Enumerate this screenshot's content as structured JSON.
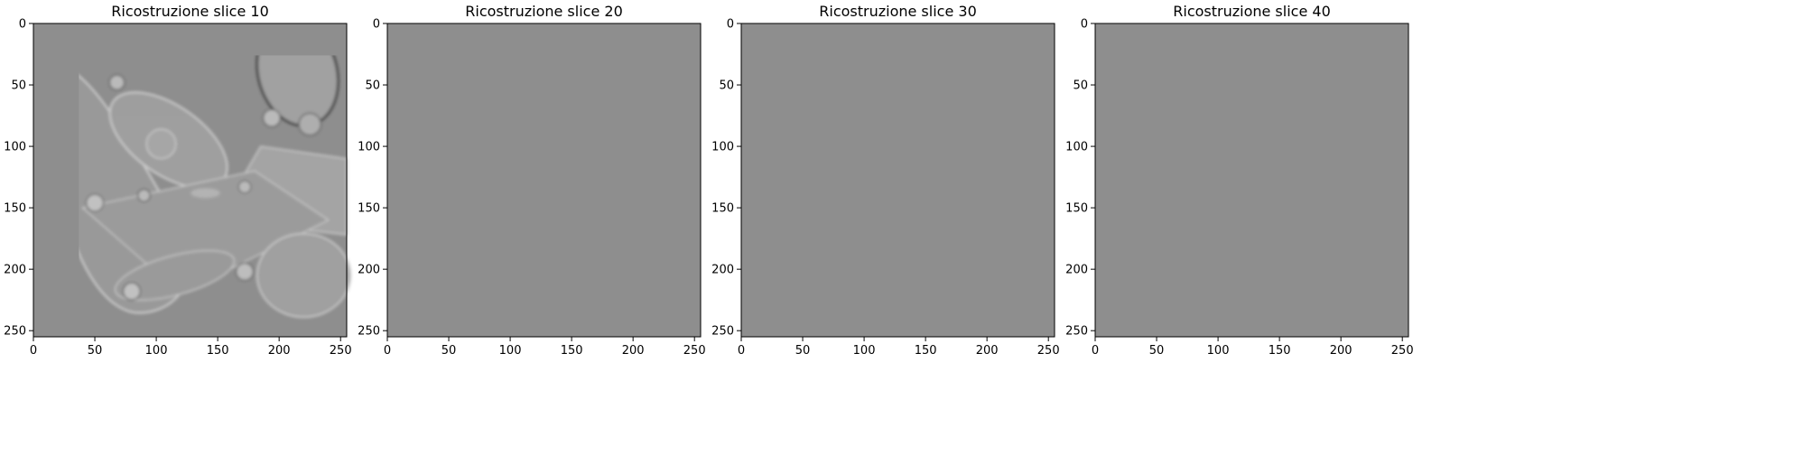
{
  "chart_data": [
    {
      "type": "heatmap",
      "title": "Ricostruzione slice 10",
      "colormap": "gray",
      "xlim": [
        0,
        255
      ],
      "ylim": [
        255,
        0
      ],
      "xticks": [
        0,
        50,
        100,
        150,
        200,
        250
      ],
      "yticks": [
        0,
        50,
        100,
        150,
        200,
        250
      ],
      "grid": false
    },
    {
      "type": "heatmap",
      "title": "Ricostruzione slice 20",
      "colormap": "gray",
      "xlim": [
        0,
        255
      ],
      "ylim": [
        255,
        0
      ],
      "xticks": [
        0,
        50,
        100,
        150,
        200,
        250
      ],
      "yticks": [
        0,
        50,
        100,
        150,
        200,
        250
      ],
      "grid": false
    },
    {
      "type": "heatmap",
      "title": "Ricostruzione slice 30",
      "colormap": "gray",
      "xlim": [
        0,
        255
      ],
      "ylim": [
        255,
        0
      ],
      "xticks": [
        0,
        50,
        100,
        150,
        200,
        250
      ],
      "yticks": [
        0,
        50,
        100,
        150,
        200,
        250
      ],
      "grid": false
    },
    {
      "type": "heatmap",
      "title": "Ricostruzione slice 40",
      "colormap": "gray",
      "xlim": [
        0,
        255
      ],
      "ylim": [
        255,
        0
      ],
      "xticks": [
        0,
        50,
        100,
        150,
        200,
        250
      ],
      "yticks": [
        0,
        50,
        100,
        150,
        200,
        250
      ],
      "grid": false
    }
  ]
}
